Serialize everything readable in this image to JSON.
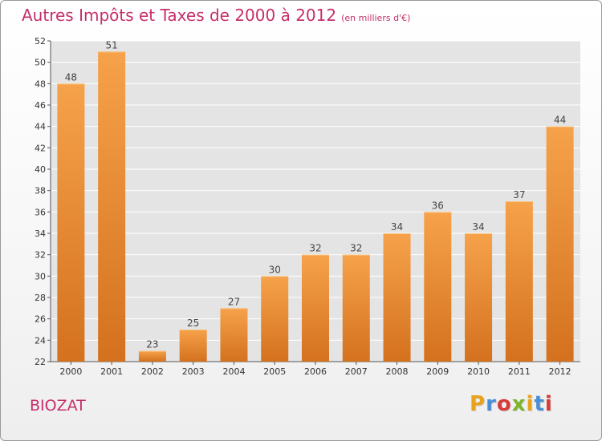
{
  "header": {
    "title": "Autres Impôts et Taxes de 2000 à 2012",
    "subtitle": "(en milliers d'€)"
  },
  "footer": {
    "city": "BIOZAT",
    "brand": "Proxiti"
  },
  "colors": {
    "title": "#c62f6a",
    "bar_light": "#f6a24b",
    "bar_dark": "#d4711e",
    "plot_bg": "#e4e4e4",
    "grid": "#ffffff"
  },
  "chart_data": {
    "type": "bar",
    "title": "Autres Impôts et Taxes de 2000 à 2012",
    "subtitle": "(en milliers d'€)",
    "xlabel": "",
    "ylabel": "",
    "categories": [
      "2000",
      "2001",
      "2002",
      "2003",
      "2004",
      "2005",
      "2006",
      "2007",
      "2008",
      "2009",
      "2010",
      "2011",
      "2012"
    ],
    "values": [
      48,
      51,
      23,
      25,
      27,
      30,
      32,
      32,
      34,
      36,
      34,
      37,
      44
    ],
    "ylim": [
      22,
      52
    ],
    "yticks": [
      22,
      24,
      26,
      28,
      30,
      32,
      34,
      36,
      38,
      40,
      42,
      44,
      46,
      48,
      50,
      52
    ],
    "grid": true,
    "legend": "none"
  }
}
